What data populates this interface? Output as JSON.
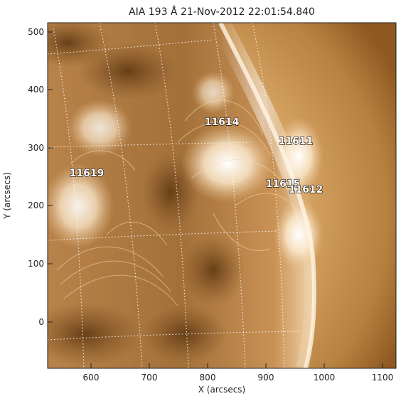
{
  "title": "AIA 193 Å 21-Nov-2012 22:01:54.840",
  "axes": {
    "xlabel": "X (arcsecs)",
    "ylabel": "Y (arcsecs)",
    "x_ticks": [
      "600",
      "700",
      "800",
      "900",
      "1000",
      "1100"
    ],
    "y_ticks": [
      "0",
      "100",
      "200",
      "300",
      "400",
      "500"
    ]
  },
  "active_regions": [
    {
      "label": "11614"
    },
    {
      "label": "11611"
    },
    {
      "label": "11619"
    },
    {
      "label": "11615"
    },
    {
      "label": "11612"
    }
  ],
  "colors": {
    "disk_dark": "#6b3f12",
    "disk_mid": "#a9743b",
    "disk_light": "#e7c08a",
    "limb_bright": "#fff6ea",
    "corona": "#d9a86a",
    "corona_far": "#b07a38",
    "grid": "#ffffff"
  }
}
